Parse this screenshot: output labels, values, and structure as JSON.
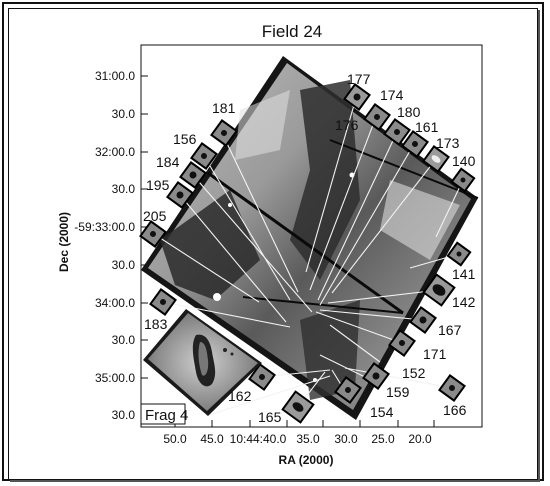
{
  "title": "Field 24",
  "xlabel": "RA (2000)",
  "ylabel": "Dec (2000)",
  "x_ticks": [
    "50.0",
    "45.0",
    "10:44:40.0",
    "35.0",
    "30.0",
    "25.0",
    "20.0"
  ],
  "y_ticks": [
    "31:00.0",
    "30.0",
    "32:00.0",
    "30.0",
    "-59:33:00.0",
    "30.0",
    "34:00.0",
    "30.0",
    "35:00.0",
    "30.0"
  ],
  "inset_label": "Frag 4",
  "sources": [
    "177",
    "174",
    "180",
    "161",
    "173",
    "140",
    "176",
    "181",
    "156",
    "184",
    "195",
    "205",
    "183",
    "141",
    "142",
    "167",
    "171",
    "152",
    "159",
    "154",
    "166",
    "162",
    "165"
  ],
  "colors": {
    "frame": "#111111",
    "image_dark": "#2e2e2e",
    "image_light": "#d6d6d6",
    "lines": "#f2f2f2"
  }
}
